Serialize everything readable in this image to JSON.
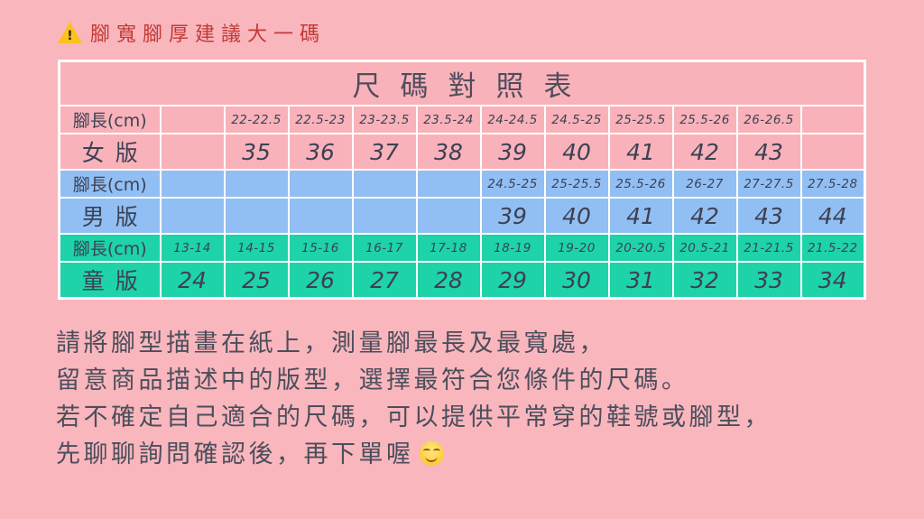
{
  "page": {
    "background": "#f9b6bd"
  },
  "colors": {
    "background": "#f9b6bd",
    "women_row": "#f9b2ba",
    "men_row": "#92bff3",
    "kids_row": "#1ed3a8",
    "grid_border": "#ffffff",
    "table_text": "#3c4154",
    "warning_text": "#c23b36",
    "body_text": "#4b4e5b"
  },
  "warning": {
    "icon": "warning-icon",
    "icon_glyph": "!",
    "text": "腳寬腳厚建議大一碼"
  },
  "table": {
    "title": "尺碼對照表",
    "columns": 12,
    "rows": [
      {
        "id": "women-foot-length",
        "group": "women",
        "kind": "label",
        "cells": [
          "腳長(cm)",
          "",
          "22-22.5",
          "22.5-23",
          "23-23.5",
          "23.5-24",
          "24-24.5",
          "24.5-25",
          "25-25.5",
          "25.5-26",
          "26-26.5",
          ""
        ]
      },
      {
        "id": "women-sizes",
        "group": "women",
        "kind": "sizes",
        "cells": [
          "女版",
          "",
          "35",
          "36",
          "37",
          "38",
          "39",
          "40",
          "41",
          "42",
          "43",
          ""
        ]
      },
      {
        "id": "men-foot-length",
        "group": "men",
        "kind": "label",
        "cells": [
          "腳長(cm)",
          "",
          "",
          "",
          "",
          "",
          "24.5-25",
          "25-25.5",
          "25.5-26",
          "26-27",
          "27-27.5",
          "27.5-28"
        ]
      },
      {
        "id": "men-sizes",
        "group": "men",
        "kind": "sizes",
        "cells": [
          "男版",
          "",
          "",
          "",
          "",
          "",
          "39",
          "40",
          "41",
          "42",
          "43",
          "44"
        ]
      },
      {
        "id": "kids-foot-length",
        "group": "kids",
        "kind": "label",
        "cells": [
          "腳長(cm)",
          "13-14",
          "14-15",
          "15-16",
          "16-17",
          "17-18",
          "18-19",
          "19-20",
          "20-20.5",
          "20.5-21",
          "21-21.5",
          "21.5-22"
        ]
      },
      {
        "id": "kids-sizes",
        "group": "kids",
        "kind": "sizes",
        "cells": [
          "童版",
          "24",
          "25",
          "26",
          "27",
          "28",
          "29",
          "30",
          "31",
          "32",
          "33",
          "34"
        ]
      }
    ]
  },
  "chart_data": {
    "type": "table",
    "title": "尺碼對照表",
    "sections": [
      {
        "name": "女版",
        "row_label": "腳長(cm)",
        "foot_length_cm": [
          "22-22.5",
          "22.5-23",
          "23-23.5",
          "23.5-24",
          "24-24.5",
          "24.5-25",
          "25-25.5",
          "25.5-26",
          "26-26.5"
        ],
        "sizes": [
          35,
          36,
          37,
          38,
          39,
          40,
          41,
          42,
          43
        ]
      },
      {
        "name": "男版",
        "row_label": "腳長(cm)",
        "foot_length_cm": [
          "24.5-25",
          "25-25.5",
          "25.5-26",
          "26-27",
          "27-27.5",
          "27.5-28"
        ],
        "sizes": [
          39,
          40,
          41,
          42,
          43,
          44
        ]
      },
      {
        "name": "童版",
        "row_label": "腳長(cm)",
        "foot_length_cm": [
          "13-14",
          "14-15",
          "15-16",
          "16-17",
          "17-18",
          "18-19",
          "19-20",
          "20-20.5",
          "20.5-21",
          "21-21.5",
          "21.5-22"
        ],
        "sizes": [
          24,
          25,
          26,
          27,
          28,
          29,
          30,
          31,
          32,
          33,
          34
        ]
      }
    ]
  },
  "instructions": {
    "lines": [
      "請將腳型描畫在紙上，測量腳最長及最寬處，",
      "留意商品描述中的版型，選擇最符合您條件的尺碼。",
      "若不確定自己適合的尺碼，可以提供平常穿的鞋號或腳型，",
      "先聊聊詢問確認後，再下單喔"
    ],
    "trailing_emoji": "😊",
    "trailing_emoji_name": "smiling-face-with-smiling-eyes-emoji"
  }
}
